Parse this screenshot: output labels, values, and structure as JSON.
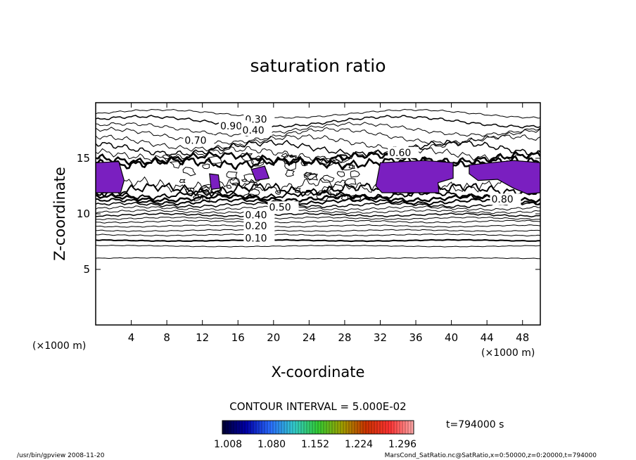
{
  "chart_data": {
    "type": "contour",
    "title": "saturation ratio",
    "xlabel": "X-coordinate",
    "ylabel": "Z-coordinate",
    "x_unit": "(×1000 m)",
    "y_unit": "(×1000 m)",
    "xlim": [
      0,
      50
    ],
    "ylim": [
      0,
      20
    ],
    "xticks": [
      4,
      8,
      12,
      16,
      20,
      24,
      28,
      32,
      36,
      40,
      44,
      48
    ],
    "yticks": [
      5,
      10,
      15
    ],
    "contour_interval_label": "CONTOUR INTERVAL = 5.000E-02",
    "contour_labels": [
      "0.10",
      "0.20",
      "0.30",
      "0.40",
      "0.50",
      "0.60",
      "0.70",
      "0.80",
      "0.90"
    ],
    "shaded_regions_color": "#7a1fc0",
    "colorbar": {
      "ticks": [
        "1.008",
        "1.080",
        "1.152",
        "1.224",
        "1.296"
      ],
      "colors": [
        "#000033",
        "#0000aa",
        "#2a6cff",
        "#33cccc",
        "#33cc33",
        "#a0a000",
        "#cc3300",
        "#ff3333",
        "#ffaaaa"
      ]
    },
    "time_label": "t=794000 s",
    "footer_left": "/usr/bin/gpview  2008-11-20",
    "footer_right": "MarsCond_SatRatio.nc@SatRatio,x=0:50000,z=0:20000,t=794000"
  }
}
